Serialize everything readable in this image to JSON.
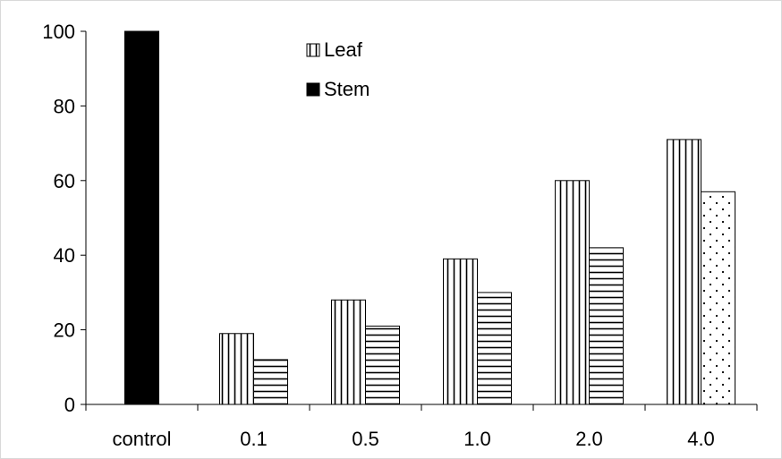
{
  "chart_data": {
    "type": "bar",
    "categories": [
      "control",
      "0.1",
      "0.5",
      "1.0",
      "2.0",
      "4.0"
    ],
    "series": [
      {
        "name": "Leaf",
        "values": [
          null,
          19,
          28,
          39,
          60,
          71
        ],
        "pattern": "vertical-stripes"
      },
      {
        "name": "Stem",
        "values": [
          100,
          12,
          21,
          30,
          42,
          57
        ],
        "pattern": "solid-black"
      }
    ],
    "ylim": [
      0,
      100
    ],
    "yticks": [
      0,
      20,
      40,
      60,
      80,
      100
    ],
    "grid": false,
    "legend": {
      "placement": "top-center",
      "entries": [
        "Leaf",
        "Stem"
      ]
    },
    "colors": {
      "ink": "#000000",
      "background": "#ffffff"
    },
    "notes": {
      "stem_fill_patterns": [
        "solid",
        "horizontal-stripes",
        "horizontal-stripes",
        "horizontal-stripes",
        "horizontal-stripes",
        "dotted"
      ]
    }
  }
}
